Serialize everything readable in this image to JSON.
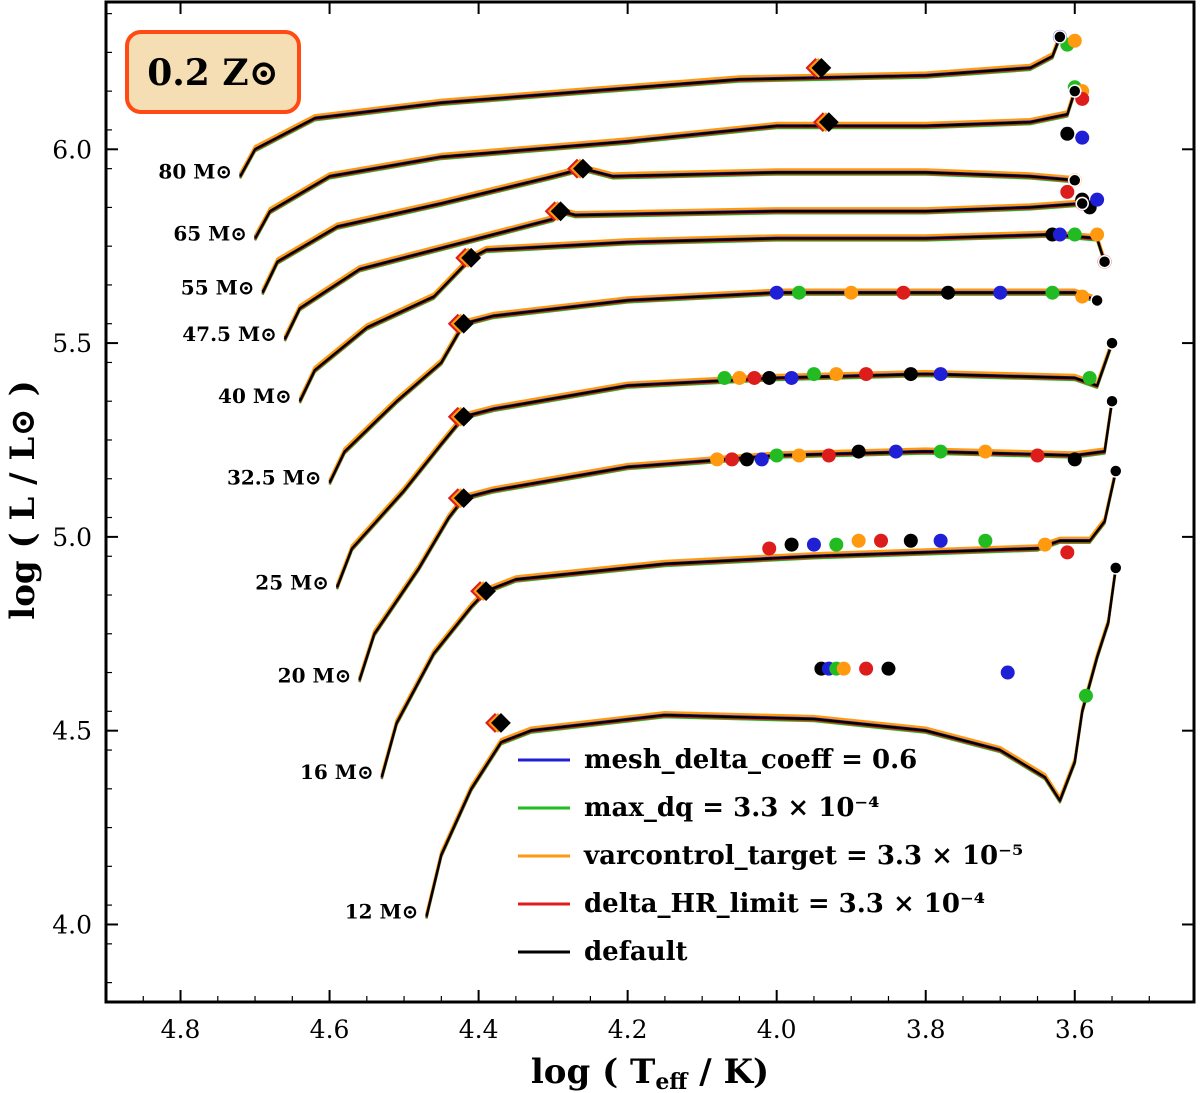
{
  "chart_data": {
    "type": "line",
    "title": "",
    "badge": "0.2 Z⊙",
    "xlabel": "log ( T_eff / K)",
    "ylabel": "log ( L / L⊙ )",
    "xlim": [
      4.9,
      3.44
    ],
    "ylim": [
      3.8,
      6.38
    ],
    "x_ticks": [
      4.8,
      4.6,
      4.4,
      4.2,
      4.0,
      3.8,
      3.6
    ],
    "x_tick_labels": [
      "4.8",
      "4.6",
      "4.4",
      "4.2",
      "4.0",
      "3.8",
      "3.6"
    ],
    "y_ticks": [
      4.0,
      4.5,
      5.0,
      5.5,
      6.0
    ],
    "y_tick_labels": [
      "4.0",
      "4.5",
      "5.0",
      "5.5",
      "6.0"
    ],
    "legend_position": "lower-center",
    "series": [
      {
        "name": "mesh_delta_coeff = 0.6",
        "color": "#1f1fd6"
      },
      {
        "name": "max_dq = 3.3 × 10⁻⁴",
        "color": "#22bb22"
      },
      {
        "name": "varcontrol_target = 3.3 × 10⁻⁵",
        "color": "#ff9a10"
      },
      {
        "name": "delta_HR_limit = 3.3 × 10⁻⁴",
        "color": "#dd1c1c"
      },
      {
        "name": "default",
        "color": "#000000"
      }
    ],
    "tracks": [
      {
        "mass": "80 M⊙",
        "zams": [
          4.72,
          5.93
        ],
        "tams": [
          3.94,
          6.21
        ],
        "path": [
          [
            4.72,
            5.93
          ],
          [
            4.7,
            6.0
          ],
          [
            4.62,
            6.08
          ],
          [
            4.45,
            6.12
          ],
          [
            4.25,
            6.15
          ],
          [
            4.05,
            6.18
          ],
          [
            3.8,
            6.19
          ],
          [
            3.66,
            6.21
          ],
          [
            3.63,
            6.24
          ],
          [
            3.62,
            6.29
          ]
        ],
        "points": [
          [
            3.62,
            6.29
          ],
          [
            3.61,
            6.27
          ],
          [
            3.6,
            6.28
          ]
        ]
      },
      {
        "mass": "65 M⊙",
        "zams": [
          4.7,
          5.77
        ],
        "tams": [
          3.93,
          6.07
        ],
        "path": [
          [
            4.7,
            5.77
          ],
          [
            4.68,
            5.84
          ],
          [
            4.6,
            5.93
          ],
          [
            4.45,
            5.98
          ],
          [
            4.2,
            6.02
          ],
          [
            4.0,
            6.06
          ],
          [
            3.8,
            6.06
          ],
          [
            3.66,
            6.07
          ],
          [
            3.61,
            6.09
          ],
          [
            3.6,
            6.15
          ]
        ],
        "points": [
          [
            3.6,
            6.16
          ],
          [
            3.59,
            6.15
          ],
          [
            3.59,
            6.13
          ],
          [
            3.61,
            6.04
          ],
          [
            3.59,
            6.03
          ]
        ]
      },
      {
        "mass": "55 M⊙",
        "zams": [
          4.69,
          5.63
        ],
        "tams": [
          4.26,
          5.95
        ],
        "path": [
          [
            4.69,
            5.63
          ],
          [
            4.67,
            5.71
          ],
          [
            4.59,
            5.8
          ],
          [
            4.45,
            5.86
          ],
          [
            4.3,
            5.93
          ],
          [
            4.26,
            5.95
          ],
          [
            4.22,
            5.93
          ],
          [
            4.0,
            5.94
          ],
          [
            3.8,
            5.94
          ],
          [
            3.66,
            5.93
          ],
          [
            3.6,
            5.92
          ]
        ],
        "points": [
          [
            3.6,
            5.92
          ],
          [
            3.61,
            5.89
          ],
          [
            3.59,
            5.87
          ]
        ]
      },
      {
        "mass": "47.5 M⊙",
        "zams": [
          4.66,
          5.51
        ],
        "tams": [
          4.29,
          5.84
        ],
        "path": [
          [
            4.66,
            5.51
          ],
          [
            4.64,
            5.59
          ],
          [
            4.56,
            5.69
          ],
          [
            4.42,
            5.76
          ],
          [
            4.3,
            5.82
          ],
          [
            4.29,
            5.84
          ],
          [
            4.27,
            5.83
          ],
          [
            4.0,
            5.84
          ],
          [
            3.8,
            5.84
          ],
          [
            3.66,
            5.85
          ],
          [
            3.59,
            5.86
          ]
        ],
        "points": [
          [
            3.59,
            5.86
          ],
          [
            3.58,
            5.85
          ],
          [
            3.57,
            5.87
          ]
        ]
      },
      {
        "mass": "40 M⊙",
        "zams": [
          4.64,
          5.35
        ],
        "tams": [
          4.41,
          5.72
        ],
        "path": [
          [
            4.64,
            5.35
          ],
          [
            4.62,
            5.43
          ],
          [
            4.55,
            5.54
          ],
          [
            4.46,
            5.62
          ],
          [
            4.41,
            5.72
          ],
          [
            4.39,
            5.74
          ],
          [
            4.2,
            5.76
          ],
          [
            4.0,
            5.77
          ],
          [
            3.8,
            5.77
          ],
          [
            3.63,
            5.78
          ],
          [
            3.57,
            5.77
          ],
          [
            3.56,
            5.71
          ]
        ],
        "points": [
          [
            3.63,
            5.78
          ],
          [
            3.62,
            5.78
          ],
          [
            3.6,
            5.78
          ],
          [
            3.57,
            5.78
          ],
          [
            3.56,
            5.71
          ]
        ]
      },
      {
        "mass": "32.5 M⊙",
        "zams": [
          4.6,
          5.14
        ],
        "tams": [
          4.42,
          5.55
        ],
        "path": [
          [
            4.6,
            5.14
          ],
          [
            4.58,
            5.22
          ],
          [
            4.51,
            5.35
          ],
          [
            4.45,
            5.45
          ],
          [
            4.42,
            5.55
          ],
          [
            4.38,
            5.57
          ],
          [
            4.2,
            5.61
          ],
          [
            4.0,
            5.63
          ],
          [
            3.8,
            5.63
          ],
          [
            3.6,
            5.63
          ],
          [
            3.57,
            5.61
          ]
        ],
        "points": [
          [
            4.0,
            5.63
          ],
          [
            3.97,
            5.63
          ],
          [
            3.9,
            5.63
          ],
          [
            3.83,
            5.63
          ],
          [
            3.77,
            5.63
          ],
          [
            3.7,
            5.63
          ],
          [
            3.63,
            5.63
          ],
          [
            3.59,
            5.62
          ]
        ]
      },
      {
        "mass": "25 M⊙",
        "zams": [
          4.59,
          4.87
        ],
        "tams": [
          4.42,
          5.31
        ],
        "path": [
          [
            4.59,
            4.87
          ],
          [
            4.57,
            4.97
          ],
          [
            4.5,
            5.12
          ],
          [
            4.45,
            5.24
          ],
          [
            4.42,
            5.31
          ],
          [
            4.38,
            5.33
          ],
          [
            4.2,
            5.39
          ],
          [
            4.0,
            5.41
          ],
          [
            3.8,
            5.42
          ],
          [
            3.6,
            5.41
          ],
          [
            3.57,
            5.39
          ],
          [
            3.55,
            5.5
          ]
        ],
        "points": [
          [
            4.07,
            5.41
          ],
          [
            4.05,
            5.41
          ],
          [
            4.03,
            5.41
          ],
          [
            4.01,
            5.41
          ],
          [
            3.98,
            5.41
          ],
          [
            3.95,
            5.42
          ],
          [
            3.92,
            5.42
          ],
          [
            3.88,
            5.42
          ],
          [
            3.82,
            5.42
          ],
          [
            3.78,
            5.42
          ],
          [
            3.58,
            5.41
          ]
        ]
      },
      {
        "mass": "20 M⊙",
        "zams": [
          4.56,
          4.63
        ],
        "tams": [
          4.42,
          5.1
        ],
        "path": [
          [
            4.56,
            4.63
          ],
          [
            4.54,
            4.75
          ],
          [
            4.48,
            4.92
          ],
          [
            4.44,
            5.05
          ],
          [
            4.42,
            5.1
          ],
          [
            4.38,
            5.12
          ],
          [
            4.2,
            5.18
          ],
          [
            4.0,
            5.21
          ],
          [
            3.8,
            5.22
          ],
          [
            3.6,
            5.21
          ],
          [
            3.56,
            5.22
          ],
          [
            3.55,
            5.35
          ]
        ],
        "points": [
          [
            4.08,
            5.2
          ],
          [
            4.06,
            5.2
          ],
          [
            4.04,
            5.2
          ],
          [
            4.02,
            5.2
          ],
          [
            4.0,
            5.21
          ],
          [
            3.97,
            5.21
          ],
          [
            3.93,
            5.21
          ],
          [
            3.89,
            5.22
          ],
          [
            3.84,
            5.22
          ],
          [
            3.78,
            5.22
          ],
          [
            3.72,
            5.22
          ],
          [
            3.65,
            5.21
          ],
          [
            3.6,
            5.2
          ]
        ]
      },
      {
        "mass": "16 M⊙",
        "zams": [
          4.53,
          4.38
        ],
        "tams": [
          4.39,
          4.86
        ],
        "path": [
          [
            4.53,
            4.38
          ],
          [
            4.51,
            4.52
          ],
          [
            4.46,
            4.7
          ],
          [
            4.41,
            4.82
          ],
          [
            4.39,
            4.86
          ],
          [
            4.35,
            4.89
          ],
          [
            4.15,
            4.93
          ],
          [
            3.95,
            4.95
          ],
          [
            3.8,
            4.96
          ],
          [
            3.65,
            4.97
          ],
          [
            3.62,
            4.99
          ],
          [
            3.58,
            4.99
          ],
          [
            3.56,
            5.04
          ],
          [
            3.545,
            5.17
          ]
        ],
        "points": [
          [
            4.01,
            4.97
          ],
          [
            3.98,
            4.98
          ],
          [
            3.95,
            4.98
          ],
          [
            3.92,
            4.98
          ],
          [
            3.89,
            4.99
          ],
          [
            3.86,
            4.99
          ],
          [
            3.82,
            4.99
          ],
          [
            3.78,
            4.99
          ],
          [
            3.72,
            4.99
          ],
          [
            3.64,
            4.98
          ],
          [
            3.61,
            4.96
          ]
        ]
      },
      {
        "mass": "12 M⊙",
        "zams": [
          4.47,
          4.02
        ],
        "tams": [
          4.37,
          4.52
        ],
        "path": [
          [
            4.47,
            4.02
          ],
          [
            4.45,
            4.18
          ],
          [
            4.41,
            4.35
          ],
          [
            4.37,
            4.47
          ],
          [
            4.33,
            4.5
          ],
          [
            4.15,
            4.54
          ],
          [
            3.95,
            4.53
          ],
          [
            3.8,
            4.5
          ],
          [
            3.7,
            4.45
          ],
          [
            3.64,
            4.38
          ],
          [
            3.62,
            4.32
          ],
          [
            3.6,
            4.42
          ],
          [
            3.59,
            4.55
          ],
          [
            3.57,
            4.69
          ],
          [
            3.555,
            4.78
          ],
          [
            3.545,
            4.92
          ]
        ],
        "points": [
          [
            3.94,
            4.66
          ],
          [
            3.93,
            4.66
          ],
          [
            3.92,
            4.66
          ],
          [
            3.91,
            4.66
          ],
          [
            3.88,
            4.66
          ],
          [
            3.85,
            4.66
          ],
          [
            3.69,
            4.65
          ],
          [
            3.585,
            4.59
          ]
        ]
      }
    ]
  }
}
